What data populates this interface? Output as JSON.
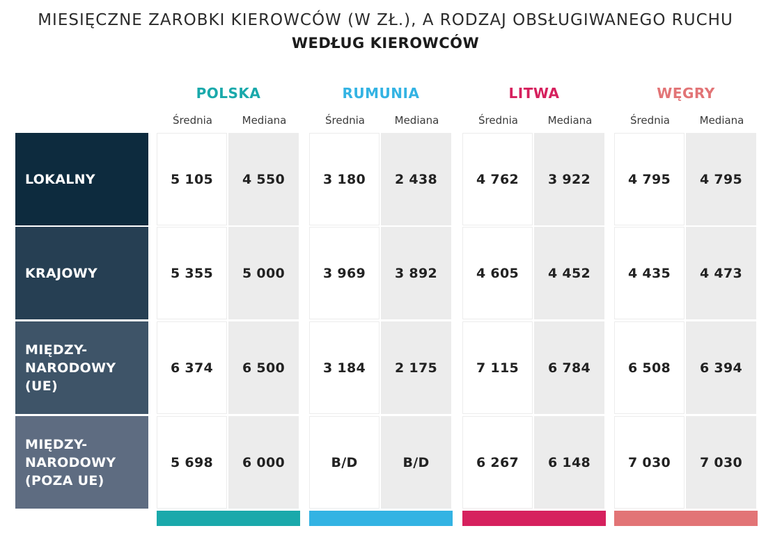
{
  "title": {
    "line1": "MIESIĘCZNE ZAROBKI KIEROWCÓW (W ZŁ.), A RODZAJ OBSŁUGIWANEGO RUCHU",
    "line2": "WEDŁUG KIEROWCÓW"
  },
  "sub_labels": {
    "avg": "Średnia",
    "med": "Mediana"
  },
  "countries": [
    {
      "name": "POLSKA",
      "color": "#1aa9ab"
    },
    {
      "name": "RUMUNIA",
      "color": "#33b3e3"
    },
    {
      "name": "LITWA",
      "color": "#d6215e"
    },
    {
      "name": "WĘGRY",
      "color": "#e27476"
    }
  ],
  "rows": [
    {
      "label": "LOKALNY",
      "color": "#0d2b3e",
      "values": [
        "5 105",
        "4 550",
        "3 180",
        "2 438",
        "4 762",
        "3 922",
        "4 795",
        "4 795"
      ]
    },
    {
      "label": "KRAJOWY",
      "color": "#263f53",
      "values": [
        "5 355",
        "5 000",
        "3 969",
        "3 892",
        "4 605",
        "4 452",
        "4 435",
        "4 473"
      ]
    },
    {
      "label": "MIĘDZY-\nNARODOWY\n(UE)",
      "color": "#3e5468",
      "values": [
        "6 374",
        "6 500",
        "3 184",
        "2 175",
        "7 115",
        "6 784",
        "6 508",
        "6 394"
      ]
    },
    {
      "label": "MIĘDZY-\nNARODOWY\n(POZA UE)",
      "color": "#5e6c81",
      "values": [
        "5 698",
        "6 000",
        "B/D",
        "B/D",
        "6 267",
        "6 148",
        "7 030",
        "7 030"
      ]
    }
  ]
}
